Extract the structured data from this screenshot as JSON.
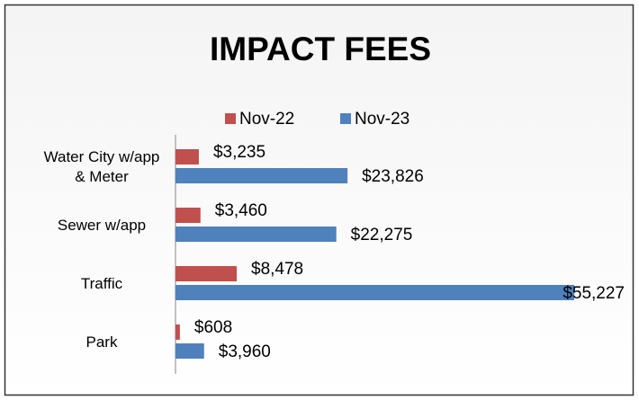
{
  "chart_data": {
    "type": "bar",
    "orientation": "horizontal",
    "title": "IMPACT FEES",
    "categories": [
      "Water City w/app & Meter",
      "Sewer w/app",
      "Traffic",
      "Park"
    ],
    "series": [
      {
        "name": "Nov-22",
        "color": "#c0504d",
        "values": [
          3235,
          3460,
          8478,
          608
        ],
        "value_labels": [
          "$3,235",
          "$3,460",
          "$8,478",
          "$608"
        ]
      },
      {
        "name": "Nov-23",
        "color": "#4f81bd",
        "values": [
          23826,
          22275,
          55227,
          3960
        ],
        "value_labels": [
          "$23,826",
          "$22,275",
          "$55,227",
          "$3,960"
        ]
      }
    ],
    "legend": "top"
  }
}
